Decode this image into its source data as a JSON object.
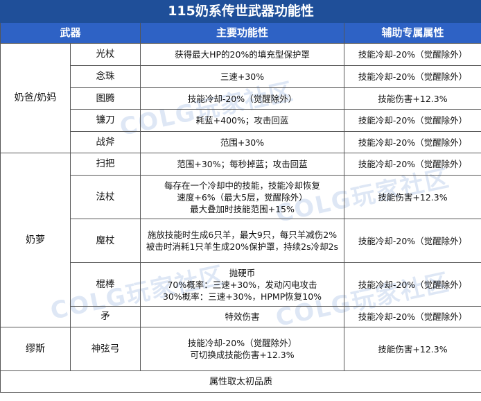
{
  "title": "115奶系传世武器功能性",
  "headers": {
    "weapon": "武器",
    "main": "主要功能性",
    "aux": "辅助专属属性"
  },
  "groups": [
    {
      "name": "奶爸/奶妈",
      "rows": [
        {
          "weapon": "光杖",
          "main": [
            "获得最大HP的20%的填充型保护罩"
          ],
          "aux": "技能冷却-20%（觉醒除外）"
        },
        {
          "weapon": "念珠",
          "main": [
            "三速+30%"
          ],
          "aux": "技能冷却-20%（觉醒除外）"
        },
        {
          "weapon": "图腾",
          "main": [
            "技能冷却-20%（觉醒除外）"
          ],
          "aux": "技能伤害+12.3%"
        },
        {
          "weapon": "镰刀",
          "main": [
            "耗蓝+400%；攻击回蓝"
          ],
          "aux": "技能冷却-20%（觉醒除外）"
        },
        {
          "weapon": "战斧",
          "main": [
            "范围+30%"
          ],
          "aux": "技能冷却-20%（觉醒除外）"
        }
      ]
    },
    {
      "name": "奶萝",
      "rows": [
        {
          "weapon": "扫把",
          "main": [
            "范围+30%；每秒掉蓝；攻击回蓝"
          ],
          "aux": "技能冷却-20%（觉醒除外）"
        },
        {
          "weapon": "法杖",
          "main": [
            "每存在一个冷却中的技能，技能冷却恢复",
            "速度+6%（最大5层，觉醒除外）",
            "最大叠加时技能范围+15%"
          ],
          "aux": "技能伤害+12.3%"
        },
        {
          "weapon": "魔杖",
          "main": [
            "施放技能时生成6只羊，最大9只，每只羊减伤2%",
            "被击时消耗1只羊生成20%保护罩，持续2s冷却2s"
          ],
          "aux": "技能冷却-20%（觉醒除外）"
        },
        {
          "weapon": "棍棒",
          "main": [
            "抛硬币",
            "70%概率：三速+30%，发动闪电攻击",
            "30%概率：三速+30%，HPMP恢复10%"
          ],
          "aux": "技能冷却-20%（觉醒除外）"
        },
        {
          "weapon": "矛",
          "main": [
            "特效伤害"
          ],
          "aux": "技能冷却-20%（觉醒除外）"
        }
      ]
    },
    {
      "name": "缪斯",
      "rows": [
        {
          "weapon": "神弦弓",
          "main": [
            "技能冷却-20%（觉醒除外）",
            "可切换成技能伤害+12.3%"
          ],
          "aux": "技能伤害+12.3%"
        }
      ]
    }
  ],
  "footer": "属性取太初品质",
  "watermark": "COLG玩家社区"
}
